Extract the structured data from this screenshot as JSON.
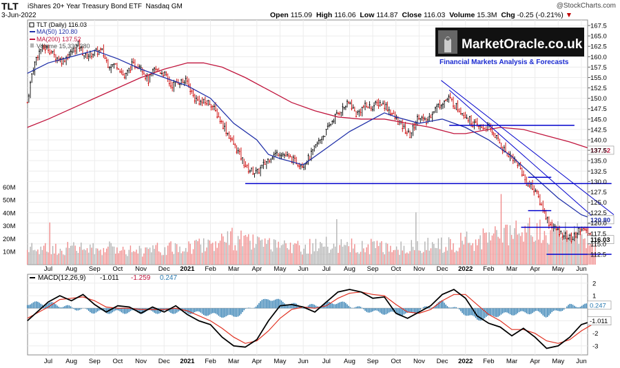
{
  "header": {
    "ticker": "TLT",
    "name": "iShares 20+ Year Treasury Bond ETF",
    "exchange": "Nasdaq GM",
    "date": "3-Jun-2022",
    "credit": "@StockCharts.com",
    "open_label": "Open",
    "open": "115.09",
    "high_label": "High",
    "high": "116.06",
    "low_label": "Low",
    "low": "114.87",
    "close_label": "Close",
    "close": "116.03",
    "volume_label": "Volume",
    "volume": "15.3M",
    "chg_label": "Chg",
    "chg": "-0.25 (-0.21%)"
  },
  "watermark": {
    "brand": "MarketOracle.co.uk",
    "tagline": "Financial Markets Analysis & Forecasts"
  },
  "legend": {
    "price": "TLT (Daily) 116.03",
    "ma50": "MA(50) 120.80",
    "ma200": "MA(200) 137.52",
    "volume": "Volume 15,330,380"
  },
  "macd_legend": {
    "label": "MACD(12,26,9)",
    "macd": "-1.011",
    "signal": "-1.259",
    "hist": "0.247"
  },
  "colors": {
    "price_up": "#000000",
    "price_down": "#cc0000",
    "ma50": "#1f2fa8",
    "ma200": "#c0143c",
    "trend": "#0000cc",
    "vol_up": "#b3b3b3",
    "vol_down": "#f08c8c",
    "macd_hist": "#2a7ab0",
    "macd_signal": "#e03020"
  },
  "chart_data": {
    "type": "line",
    "title": "TLT iShares 20+ Year Treasury Bond ETF (Daily)",
    "x_ticks": [
      "Jul",
      "Aug",
      "Sep",
      "Oct",
      "Nov",
      "Dec",
      "2021",
      "Feb",
      "Mar",
      "Apr",
      "May",
      "Jun",
      "Jul",
      "Aug",
      "Sep",
      "Oct",
      "Nov",
      "Dec",
      "2022",
      "Feb",
      "Mar",
      "Apr",
      "May",
      "Jun"
    ],
    "x_range": [
      0,
      24
    ],
    "price_ticks": [
      "167.5",
      "165.0",
      "162.5",
      "160.0",
      "157.5",
      "155.0",
      "152.5",
      "150.0",
      "147.5",
      "145.0",
      "142.5",
      "140.0",
      "137.5",
      "135.0",
      "132.5",
      "130.0",
      "127.5",
      "125.0",
      "122.5",
      "120.0",
      "117.5",
      "115.0",
      "112.5"
    ],
    "price_ylim": [
      111,
      168.5
    ],
    "volume_ticks": [
      "60M",
      "50M",
      "40M",
      "30M",
      "20M",
      "10M"
    ],
    "volume_ylim": [
      0,
      65
    ],
    "macd_ticks": [
      "2",
      "1",
      "-1",
      "-2",
      "-3"
    ],
    "macd_ylim": [
      -3.5,
      2.6
    ],
    "value_tags": {
      "ma200": "137.52",
      "ma50": "120.80",
      "close": "116.03"
    },
    "series": [
      {
        "name": "TLT close",
        "points": [
          [
            -0.9,
            149
          ],
          [
            -0.7,
            156
          ],
          [
            -0.5,
            160
          ],
          [
            -0.3,
            162
          ],
          [
            0,
            162
          ],
          [
            0.3,
            160
          ],
          [
            0.6,
            159
          ],
          [
            1,
            161
          ],
          [
            1.3,
            163
          ],
          [
            1.6,
            160
          ],
          [
            2,
            161
          ],
          [
            2.3,
            161.5
          ],
          [
            2.6,
            158
          ],
          [
            3,
            158
          ],
          [
            3.3,
            155
          ],
          [
            3.6,
            158
          ],
          [
            4,
            158
          ],
          [
            4.3,
            154
          ],
          [
            4.6,
            157
          ],
          [
            5,
            156
          ],
          [
            5.3,
            153
          ],
          [
            5.6,
            154
          ],
          [
            6,
            154
          ],
          [
            6.3,
            150
          ],
          [
            6.6,
            149
          ],
          [
            7,
            149
          ],
          [
            7.3,
            146
          ],
          [
            7.6,
            143
          ],
          [
            8,
            139
          ],
          [
            8.3,
            136
          ],
          [
            8.6,
            133
          ],
          [
            9,
            132
          ],
          [
            9.3,
            134
          ],
          [
            9.6,
            136
          ],
          [
            10,
            137
          ],
          [
            10.3,
            136
          ],
          [
            10.6,
            135
          ],
          [
            11,
            134
          ],
          [
            11.3,
            136
          ],
          [
            11.6,
            139
          ],
          [
            12,
            142
          ],
          [
            12.3,
            145
          ],
          [
            12.6,
            147
          ],
          [
            13,
            149
          ],
          [
            13.3,
            146
          ],
          [
            13.6,
            148
          ],
          [
            14,
            148
          ],
          [
            14.3,
            149
          ],
          [
            14.6,
            148
          ],
          [
            15,
            145
          ],
          [
            15.3,
            143
          ],
          [
            15.6,
            141
          ],
          [
            16,
            146
          ],
          [
            16.3,
            144
          ],
          [
            16.6,
            147
          ],
          [
            17,
            149
          ],
          [
            17.3,
            150
          ],
          [
            17.6,
            148
          ],
          [
            18,
            146
          ],
          [
            18.3,
            144
          ],
          [
            18.6,
            143
          ],
          [
            19,
            143
          ],
          [
            19.3,
            141
          ],
          [
            19.6,
            138
          ],
          [
            20,
            136
          ],
          [
            20.3,
            134
          ],
          [
            20.6,
            130
          ],
          [
            21,
            128
          ],
          [
            21.3,
            124
          ],
          [
            21.6,
            120
          ],
          [
            22,
            118
          ],
          [
            22.3,
            117
          ],
          [
            22.6,
            116
          ],
          [
            23,
            119
          ],
          [
            23.3,
            117
          ],
          [
            23.6,
            116
          ]
        ]
      },
      {
        "name": "MA(50)",
        "points": [
          [
            -0.9,
            156
          ],
          [
            0,
            158.5
          ],
          [
            1,
            160
          ],
          [
            2,
            161.5
          ],
          [
            3,
            159.5
          ],
          [
            4,
            157
          ],
          [
            5,
            155
          ],
          [
            6,
            153
          ],
          [
            7,
            150
          ],
          [
            8,
            144
          ],
          [
            9,
            140
          ],
          [
            9.5,
            136.5
          ],
          [
            10,
            135.5
          ],
          [
            11,
            134
          ],
          [
            12,
            138
          ],
          [
            13,
            142
          ],
          [
            14,
            145
          ],
          [
            14.5,
            146.5
          ],
          [
            15,
            145.5
          ],
          [
            16,
            144
          ],
          [
            17,
            145
          ],
          [
            18,
            143
          ],
          [
            19,
            140
          ],
          [
            20,
            136
          ],
          [
            21,
            131
          ],
          [
            22,
            126
          ],
          [
            23,
            122
          ],
          [
            23.6,
            120.8
          ]
        ]
      },
      {
        "name": "MA(200)",
        "points": [
          [
            -0.9,
            143
          ],
          [
            0,
            145
          ],
          [
            1,
            147.5
          ],
          [
            2,
            150
          ],
          [
            3,
            152.5
          ],
          [
            4,
            155
          ],
          [
            5,
            157
          ],
          [
            6,
            158.5
          ],
          [
            6.7,
            158.5
          ],
          [
            7.5,
            157.5
          ],
          [
            8.5,
            155
          ],
          [
            9.5,
            152
          ],
          [
            10.5,
            149
          ],
          [
            11.5,
            147
          ],
          [
            12.5,
            145.5
          ],
          [
            13.5,
            145
          ],
          [
            14.5,
            145
          ],
          [
            15.5,
            144
          ],
          [
            16.5,
            143
          ],
          [
            17.5,
            141.5
          ],
          [
            18,
            141.5
          ],
          [
            18.5,
            142
          ],
          [
            19.5,
            143
          ],
          [
            20.5,
            142.5
          ],
          [
            21.5,
            141
          ],
          [
            22.5,
            139.5
          ],
          [
            23.6,
            137.5
          ]
        ]
      },
      {
        "name": "Volume (M)",
        "points": [
          [
            0,
            12
          ],
          [
            1,
            13
          ],
          [
            2,
            12
          ],
          [
            3,
            13
          ],
          [
            4,
            11
          ],
          [
            5,
            12
          ],
          [
            6,
            14
          ],
          [
            7,
            17
          ],
          [
            8,
            20
          ],
          [
            9,
            16
          ],
          [
            10,
            13
          ],
          [
            11,
            14
          ],
          [
            12,
            15
          ],
          [
            13,
            14
          ],
          [
            14,
            14
          ],
          [
            15,
            13
          ],
          [
            16,
            14
          ],
          [
            17,
            16
          ],
          [
            18,
            18
          ],
          [
            19,
            20
          ],
          [
            20,
            23
          ],
          [
            21,
            26
          ],
          [
            22,
            24
          ],
          [
            23,
            22
          ],
          [
            23.6,
            15.3
          ]
        ]
      },
      {
        "name": "MACD",
        "points": [
          [
            -0.9,
            -1
          ],
          [
            0,
            0.5
          ],
          [
            0.5,
            1
          ],
          [
            1,
            0.6
          ],
          [
            1.5,
            1.1
          ],
          [
            2,
            0.3
          ],
          [
            2.5,
            -0.3
          ],
          [
            3,
            0.2
          ],
          [
            3.5,
            0.1
          ],
          [
            4,
            -0.4
          ],
          [
            4.5,
            0.1
          ],
          [
            5,
            -0.3
          ],
          [
            5.5,
            0.2
          ],
          [
            6,
            -0.5
          ],
          [
            6.5,
            -1
          ],
          [
            7,
            -1.3
          ],
          [
            7.5,
            -2.3
          ],
          [
            8,
            -3
          ],
          [
            8.5,
            -3.1
          ],
          [
            9,
            -2.5
          ],
          [
            9.5,
            -1
          ],
          [
            10,
            0.2
          ],
          [
            10.5,
            0.3
          ],
          [
            11,
            0.1
          ],
          [
            11.5,
            -0.3
          ],
          [
            12,
            0.5
          ],
          [
            12.5,
            1.3
          ],
          [
            13,
            1.5
          ],
          [
            13.5,
            1.3
          ],
          [
            14,
            0.8
          ],
          [
            14.5,
            0.9
          ],
          [
            15,
            -0.4
          ],
          [
            15.5,
            -0.8
          ],
          [
            16,
            -0.3
          ],
          [
            16.5,
            0.2
          ],
          [
            17,
            1.1
          ],
          [
            17.5,
            1.5
          ],
          [
            18,
            0.8
          ],
          [
            18.5,
            -0.6
          ],
          [
            19,
            -1.2
          ],
          [
            19.5,
            -1.5
          ],
          [
            20,
            -2.2
          ],
          [
            20.5,
            -1.6
          ],
          [
            21,
            -2.3
          ],
          [
            21.5,
            -3.2
          ],
          [
            22,
            -3
          ],
          [
            22.5,
            -2.3
          ],
          [
            23,
            -1.3
          ],
          [
            23.5,
            -1
          ]
        ]
      },
      {
        "name": "MACD signal",
        "points": [
          [
            -0.9,
            -0.8
          ],
          [
            0,
            0.1
          ],
          [
            0.5,
            0.7
          ],
          [
            1,
            0.8
          ],
          [
            1.5,
            0.9
          ],
          [
            2,
            0.6
          ],
          [
            2.5,
            0.1
          ],
          [
            3,
            0
          ],
          [
            3.5,
            0
          ],
          [
            4,
            -0.1
          ],
          [
            4.5,
            -0.1
          ],
          [
            5,
            -0.1
          ],
          [
            5.5,
            0
          ],
          [
            6,
            -0.2
          ],
          [
            6.5,
            -0.6
          ],
          [
            7,
            -1
          ],
          [
            7.5,
            -1.6
          ],
          [
            8,
            -2.3
          ],
          [
            8.5,
            -2.8
          ],
          [
            9,
            -2.6
          ],
          [
            9.5,
            -1.8
          ],
          [
            10,
            -0.8
          ],
          [
            10.5,
            -0.1
          ],
          [
            11,
            0.1
          ],
          [
            11.5,
            0
          ],
          [
            12,
            0.2
          ],
          [
            12.5,
            0.8
          ],
          [
            13,
            1.2
          ],
          [
            13.5,
            1.3
          ],
          [
            14,
            1.1
          ],
          [
            14.5,
            1
          ],
          [
            15,
            0.3
          ],
          [
            15.5,
            -0.3
          ],
          [
            16,
            -0.4
          ],
          [
            16.5,
            -0.1
          ],
          [
            17,
            0.6
          ],
          [
            17.5,
            1.1
          ],
          [
            18,
            1.1
          ],
          [
            18.5,
            0.3
          ],
          [
            19,
            -0.5
          ],
          [
            19.5,
            -1
          ],
          [
            20,
            -1.7
          ],
          [
            20.5,
            -1.7
          ],
          [
            21,
            -2
          ],
          [
            21.5,
            -2.6
          ],
          [
            22,
            -2.8
          ],
          [
            22.5,
            -2.5
          ],
          [
            23,
            -1.8
          ],
          [
            23.5,
            -1.26
          ]
        ]
      },
      {
        "name": "MACD histogram",
        "points": [
          [
            0,
            0.4
          ],
          [
            2,
            -0.3
          ],
          [
            4,
            -0.3
          ],
          [
            6,
            -0.3
          ],
          [
            8,
            -0.7
          ],
          [
            9.5,
            0.8
          ],
          [
            11,
            0.1
          ],
          [
            12.5,
            0.5
          ],
          [
            14,
            -0.3
          ],
          [
            15.5,
            -0.5
          ],
          [
            17,
            0.5
          ],
          [
            18.5,
            -0.9
          ],
          [
            19.5,
            -0.5
          ],
          [
            21,
            -0.3
          ],
          [
            21.5,
            -0.6
          ],
          [
            22.5,
            0.2
          ],
          [
            23.5,
            0.25
          ]
        ]
      }
    ],
    "horizontal_lines": [
      {
        "name": "support 129.5",
        "y": 129.5,
        "x": [
          8.5,
          24.3
        ]
      },
      {
        "name": "resistance 143.5",
        "y": 143.5,
        "x": [
          17.3,
          22.7
        ]
      },
      {
        "name": "level 131",
        "y": 131,
        "x": [
          20.7,
          21.7
        ]
      },
      {
        "name": "level 123",
        "y": 123,
        "x": [
          20.7,
          21.7
        ]
      },
      {
        "name": "level 119",
        "y": 119,
        "x": [
          20.4,
          24.3
        ]
      },
      {
        "name": "level 112.5",
        "y": 112.5,
        "x": [
          21.5,
          24.3
        ]
      }
    ],
    "trend_lines": [
      {
        "name": "downtrend",
        "from": [
          16.95,
          154.3
        ],
        "to": [
          24.4,
          122
        ]
      },
      {
        "name": "downtrend 2",
        "from": [
          17.3,
          152
        ],
        "to": [
          23.6,
          121
        ]
      }
    ]
  }
}
